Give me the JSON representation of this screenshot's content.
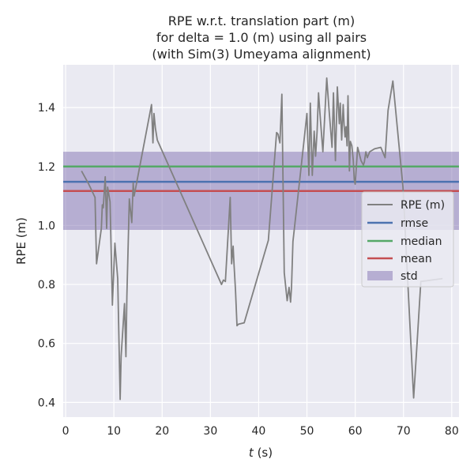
{
  "chart_data": {
    "type": "line",
    "title": [
      "RPE w.r.t. translation part (m)",
      "for delta = 1.0 (m) using all pairs",
      "(with Sim(3) Umeyama alignment)"
    ],
    "xlabel_italic": "t",
    "xlabel_unit": " (s)",
    "ylabel": "RPE (m)",
    "xlim": [
      -0.5,
      81.5
    ],
    "ylim": [
      0.35,
      1.545
    ],
    "xticks": [
      0,
      10,
      20,
      30,
      40,
      50,
      60,
      70,
      80
    ],
    "yticks": [
      0.4,
      0.6,
      0.8,
      1.0,
      1.2,
      1.4
    ],
    "ytick_labels": [
      "0.4",
      "0.6",
      "0.8",
      "1.0",
      "1.2",
      "1.4"
    ],
    "grid": true,
    "legend_position": "center-right",
    "series": [
      {
        "name": "RPE (m)",
        "color": "#808080",
        "x": [
          3.3,
          4.8,
          6.1,
          6.4,
          7.4,
          7.6,
          7.8,
          8.2,
          8.5,
          8.7,
          9.2,
          9.7,
          10.2,
          10.8,
          11.3,
          11.5,
          12.2,
          12.5,
          12.7,
          13.2,
          13.7,
          14.0,
          14.2,
          17.8,
          18.1,
          18.3,
          18.6,
          19.0,
          32.3,
          32.7,
          33.1,
          34.1,
          34.4,
          34.7,
          34.9,
          35.2,
          35.5,
          35.8,
          37.0,
          42.0,
          43.7,
          44.0,
          44.4,
          44.8,
          45.3,
          45.9,
          46.3,
          46.6,
          46.8,
          47.1,
          49.3,
          50.0,
          50.4,
          50.7,
          51.1,
          51.5,
          51.8,
          52.1,
          52.4,
          52.7,
          53.3,
          54.1,
          54.6,
          55.2,
          55.5,
          55.9,
          56.3,
          56.7,
          56.9,
          57.2,
          57.5,
          57.7,
          57.9,
          58.1,
          58.3,
          58.5,
          58.8,
          59.0,
          59.3,
          59.6,
          59.8,
          60.0,
          60.5,
          61.2,
          61.7,
          61.9,
          62.2,
          62.5,
          63.0,
          64.0,
          65.3,
          66.2,
          66.8,
          67.8,
          69.9,
          72.1,
          72.8,
          73.6,
          78.1
        ],
        "y": [
          1.185,
          1.14,
          1.095,
          0.87,
          0.99,
          1.07,
          1.06,
          1.165,
          0.99,
          1.13,
          1.08,
          0.73,
          0.94,
          0.82,
          0.41,
          0.555,
          0.735,
          0.555,
          0.76,
          1.09,
          1.01,
          1.145,
          1.1,
          1.41,
          1.28,
          1.38,
          1.33,
          1.29,
          0.8,
          0.815,
          0.81,
          1.095,
          0.87,
          0.93,
          0.865,
          0.78,
          0.66,
          0.665,
          0.67,
          0.95,
          1.315,
          1.31,
          1.28,
          1.445,
          0.84,
          0.745,
          0.79,
          0.74,
          0.79,
          0.945,
          1.275,
          1.38,
          1.17,
          1.415,
          1.17,
          1.32,
          1.235,
          1.32,
          1.45,
          1.38,
          1.25,
          1.5,
          1.39,
          1.265,
          1.45,
          1.22,
          1.47,
          1.345,
          1.415,
          1.29,
          1.41,
          1.34,
          1.3,
          1.335,
          1.27,
          1.44,
          1.185,
          1.285,
          1.27,
          1.22,
          1.155,
          1.14,
          1.265,
          1.22,
          1.205,
          1.215,
          1.25,
          1.23,
          1.25,
          1.26,
          1.265,
          1.23,
          1.39,
          1.49,
          1.13,
          0.415,
          0.595,
          0.81,
          0.82
        ]
      }
    ],
    "stats": [
      {
        "name": "rmse",
        "value": 1.148,
        "color": "#4c72b0"
      },
      {
        "name": "median",
        "value": 1.2,
        "color": "#55a868"
      },
      {
        "name": "mean",
        "value": 1.117,
        "color": "#c44e52"
      }
    ],
    "std_band": {
      "name": "std",
      "lower": 0.985,
      "upper": 1.25,
      "color": "#8172b2"
    }
  }
}
